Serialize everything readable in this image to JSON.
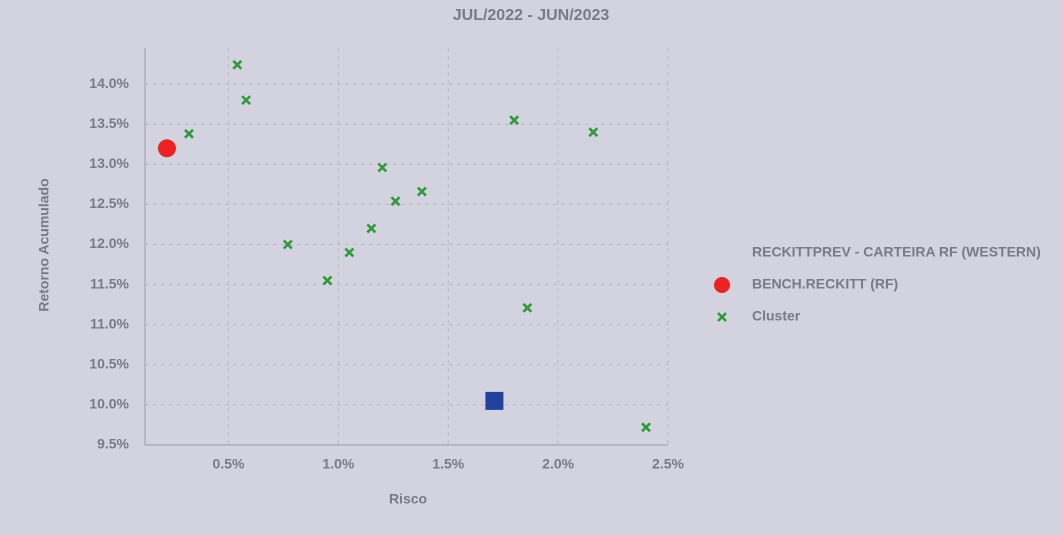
{
  "chart_data": {
    "type": "scatter",
    "title": "JUL/2022 - JUN/2023",
    "x_label": "Risco",
    "y_label": "Retorno Acumulado",
    "xlim": [
      0.12,
      2.5
    ],
    "ylim": [
      9.5,
      14.45
    ],
    "xticks": [
      {
        "value": 0.5,
        "label": "0.5%"
      },
      {
        "value": 1.0,
        "label": "1.0%"
      },
      {
        "value": 1.5,
        "label": "1.5%"
      },
      {
        "value": 2.0,
        "label": "2.0%"
      },
      {
        "value": 2.5,
        "label": "2.5%"
      }
    ],
    "yticks": [
      {
        "value": 9.5,
        "label": "9.5%"
      },
      {
        "value": 10.0,
        "label": "10.0%"
      },
      {
        "value": 10.5,
        "label": "10.5%"
      },
      {
        "value": 11.0,
        "label": "11.0%"
      },
      {
        "value": 11.5,
        "label": "11.5%"
      },
      {
        "value": 12.0,
        "label": "12.0%"
      },
      {
        "value": 12.5,
        "label": "12.5%"
      },
      {
        "value": 13.0,
        "label": "13.0%"
      },
      {
        "value": 13.5,
        "label": "13.5%"
      },
      {
        "value": 14.0,
        "label": "14.0%"
      }
    ],
    "grid": true,
    "legend": "right",
    "series": [
      {
        "name": "RECKITTPREV - CARTEIRA RF (WESTERN)",
        "color": "#2342a0",
        "marker": "square",
        "x": [
          1.71
        ],
        "values": [
          10.05
        ]
      },
      {
        "name": "BENCH.RECKITT (RF)",
        "color": "#ee2222",
        "marker": "circle",
        "x": [
          0.22
        ],
        "values": [
          13.2
        ]
      },
      {
        "name": "Cluster",
        "color": "#2e9a3a",
        "marker": "x",
        "x": [
          0.54,
          0.58,
          0.32,
          1.2,
          1.38,
          1.26,
          1.15,
          0.77,
          1.05,
          0.95,
          1.8,
          2.16,
          1.86,
          2.4
        ],
        "values": [
          14.24,
          13.8,
          13.38,
          12.96,
          12.66,
          12.54,
          12.2,
          12.0,
          11.9,
          11.55,
          13.55,
          13.4,
          11.21,
          9.72
        ]
      }
    ]
  }
}
